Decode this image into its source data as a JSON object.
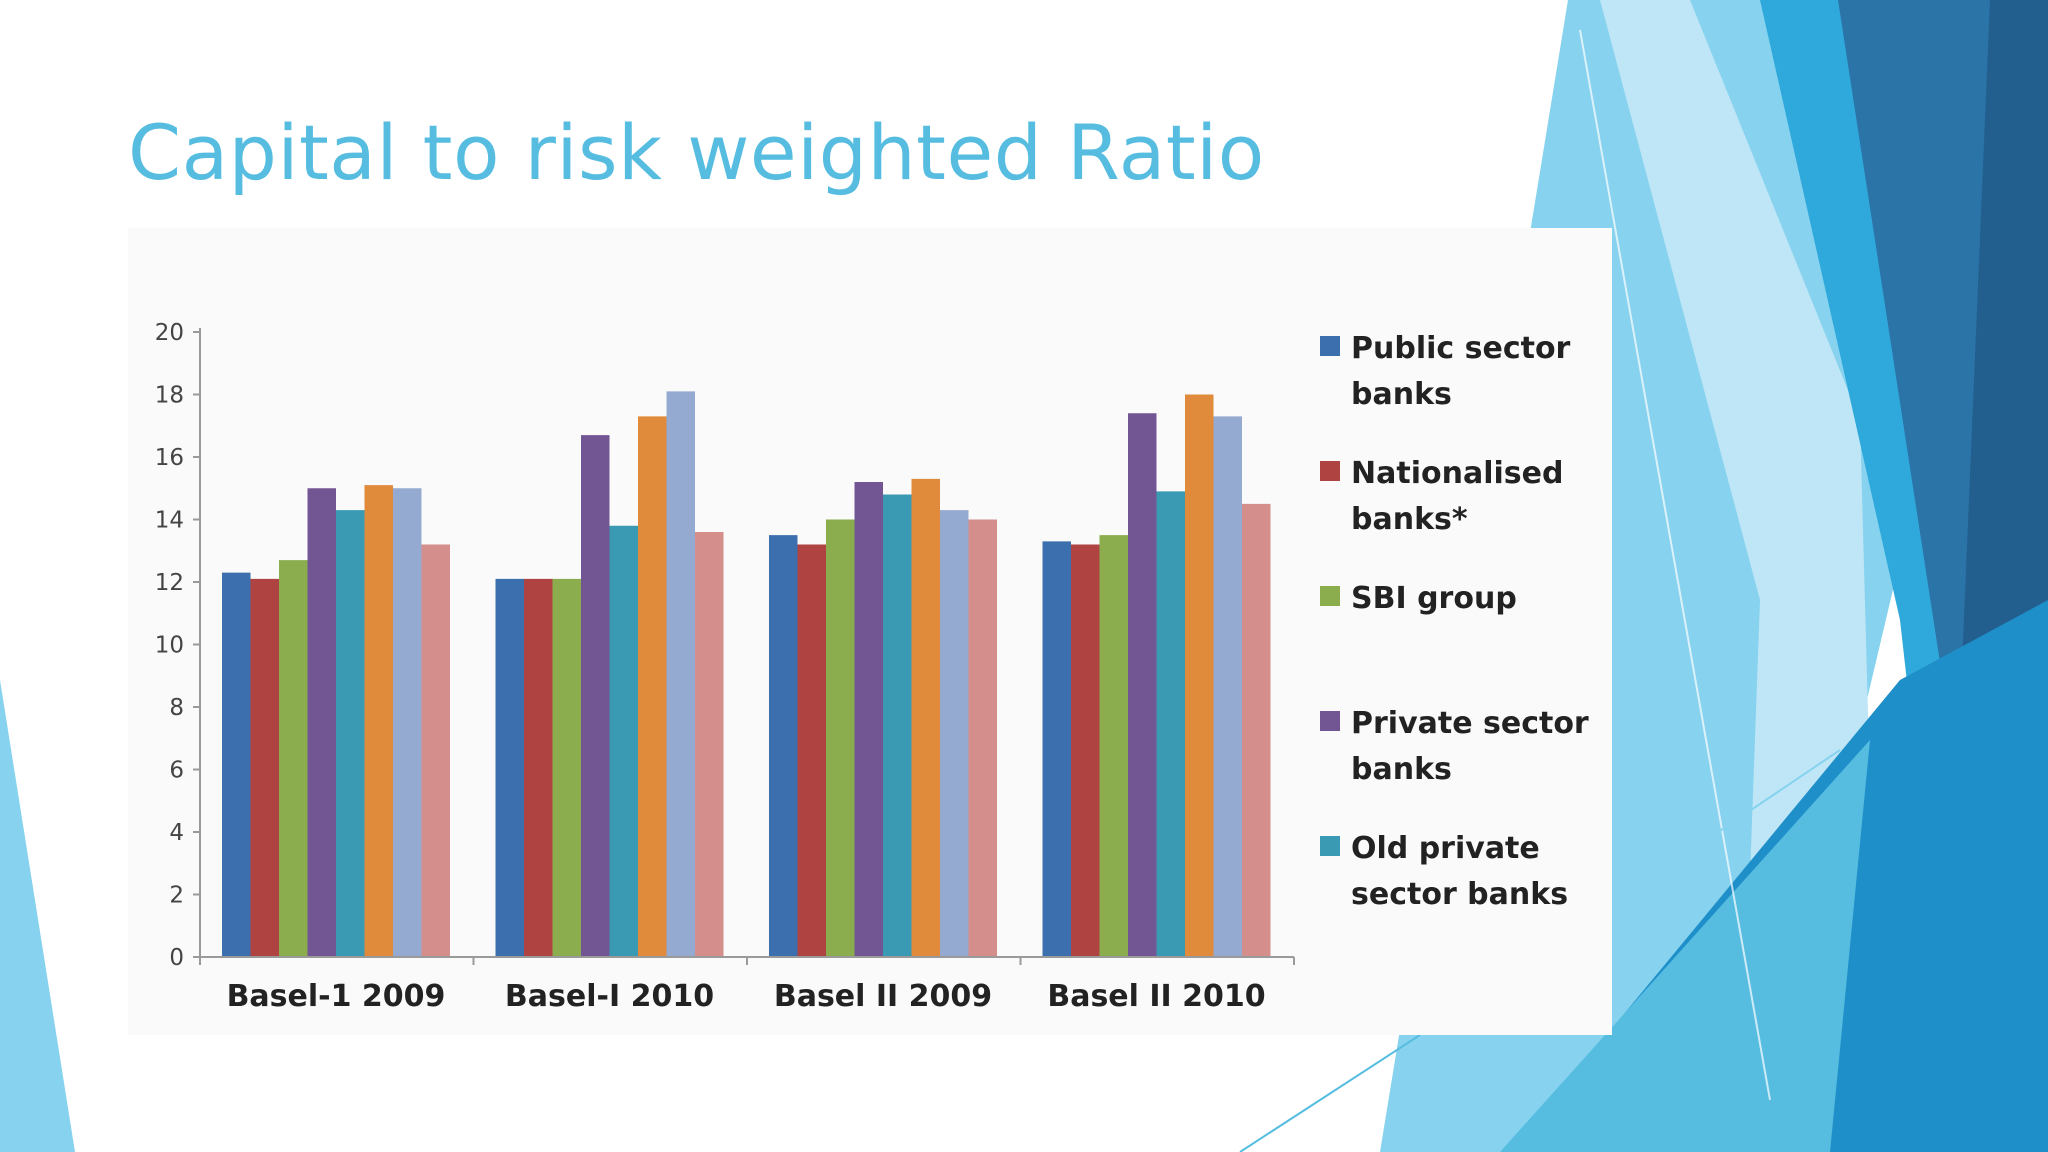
{
  "slide": {
    "title": "Capital to risk weighted Ratio"
  },
  "theme": {
    "title_color": "#56BDE1",
    "decor_colors": [
      "#86D2EF",
      "#56BDE1",
      "#2FA9DC",
      "#1E8FC8",
      "#2B74A8",
      "#225F8E",
      "#BFE6F6"
    ]
  },
  "chart_data": {
    "type": "bar",
    "title": "",
    "xlabel": "",
    "ylabel": "",
    "ylim": [
      0,
      20
    ],
    "yticks": [
      0,
      2,
      4,
      6,
      8,
      10,
      12,
      14,
      16,
      18,
      20
    ],
    "grid": false,
    "legend_position": "right",
    "categories": [
      "Basel-1 2009",
      "Basel-I 2010",
      "Basel II 2009",
      "Basel II 2010"
    ],
    "series": [
      {
        "name": "Public sector banks",
        "label_lines": [
          "Public sector",
          "banks"
        ],
        "color": "#3C6FAD",
        "values": [
          12.3,
          12.1,
          13.5,
          13.3
        ]
      },
      {
        "name": "Nationalised banks*",
        "label_lines": [
          "Nationalised",
          "banks*"
        ],
        "color": "#AE4341",
        "values": [
          12.1,
          12.1,
          13.2,
          13.2
        ]
      },
      {
        "name": "SBI group",
        "label_lines": [
          "SBI group"
        ],
        "color": "#8CAD4E",
        "values": [
          12.7,
          12.1,
          14.0,
          13.5
        ]
      },
      {
        "name": "Private sector banks",
        "label_lines": [
          "Private sector",
          "banks"
        ],
        "color": "#725593",
        "values": [
          15.0,
          16.7,
          15.2,
          17.4
        ]
      },
      {
        "name": "Old private sector banks",
        "label_lines": [
          "Old private",
          "sector banks"
        ],
        "color": "#3A9AB3",
        "values": [
          14.3,
          13.8,
          14.8,
          14.9
        ]
      },
      {
        "name": "",
        "label_lines": [],
        "color": "#E08A3C",
        "values": [
          15.1,
          17.3,
          15.3,
          18.0
        ]
      },
      {
        "name": "",
        "label_lines": [],
        "color": "#94AAD0",
        "values": [
          15.0,
          18.1,
          14.3,
          17.3
        ]
      },
      {
        "name": "",
        "label_lines": [],
        "color": "#D48F8C",
        "values": [
          13.2,
          13.6,
          14.0,
          14.5
        ]
      }
    ]
  }
}
